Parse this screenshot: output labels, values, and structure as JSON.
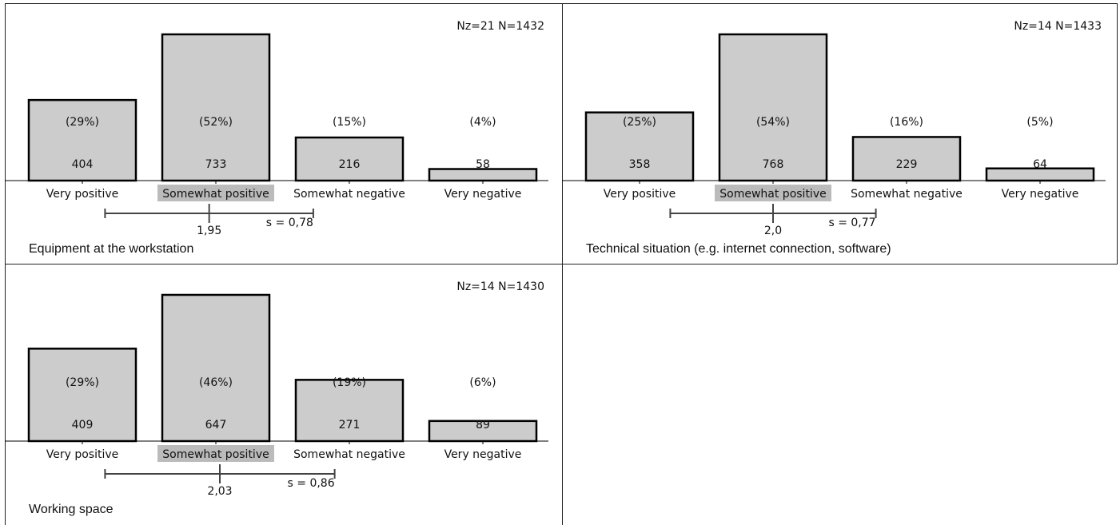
{
  "chart_data": [
    {
      "type": "bar",
      "title": "Equipment at the workstation",
      "counts_label": "Nz=21 N=1432",
      "categories": [
        "Very positive",
        "Somewhat positive",
        "Somewhat negative",
        "Very negative"
      ],
      "values": [
        404,
        733,
        216,
        58
      ],
      "percent_labels": [
        "(29%)",
        "(52%)",
        "(15%)",
        "(4%)"
      ],
      "highlighted_category": "Somewhat positive",
      "ylim": [
        0,
        733
      ],
      "mean": 1.95,
      "mean_label": "1,95",
      "sd": 0.78,
      "sd_label": "s = 0,78"
    },
    {
      "type": "bar",
      "title": "Technical situation (e.g. internet connection, software)",
      "counts_label": "Nz=14 N=1433",
      "categories": [
        "Very positive",
        "Somewhat positive",
        "Somewhat negative",
        "Very negative"
      ],
      "values": [
        358,
        768,
        229,
        64
      ],
      "percent_labels": [
        "(25%)",
        "(54%)",
        "(16%)",
        "(5%)"
      ],
      "highlighted_category": "Somewhat positive",
      "ylim": [
        0,
        768
      ],
      "mean": 2.0,
      "mean_label": "2,0",
      "sd": 0.77,
      "sd_label": "s = 0,77"
    },
    {
      "type": "bar",
      "title": "Working space",
      "counts_label": "Nz=14 N=1430",
      "categories": [
        "Very positive",
        "Somewhat positive",
        "Somewhat negative",
        "Very negative"
      ],
      "values": [
        409,
        647,
        271,
        89
      ],
      "percent_labels": [
        "(29%)",
        "(46%)",
        "(19%)",
        "(6%)"
      ],
      "highlighted_category": "Somewhat positive",
      "ylim": [
        0,
        647
      ],
      "mean": 2.03,
      "mean_label": "2,03",
      "sd": 0.86,
      "sd_label": "s = 0,86"
    }
  ],
  "colors": {
    "bar_fill": "#cccccc",
    "bar_stroke": "#000000",
    "highlight": "#bbbbbb",
    "stat_line": "#444444"
  }
}
